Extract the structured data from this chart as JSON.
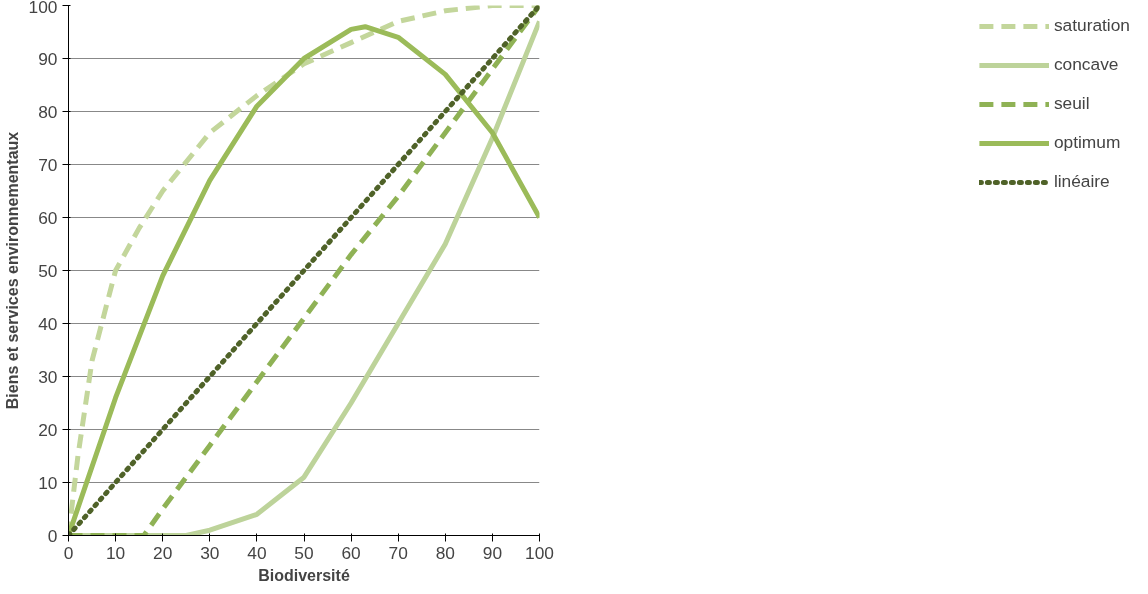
{
  "chart_data": {
    "type": "line",
    "xlabel": "Biodiversité",
    "ylabel": "Biens et services environnementaux",
    "xlim": [
      0,
      100
    ],
    "ylim": [
      0,
      100
    ],
    "xticks": [
      0,
      10,
      20,
      30,
      40,
      50,
      60,
      70,
      80,
      90,
      100
    ],
    "yticks": [
      0,
      10,
      20,
      30,
      40,
      50,
      60,
      70,
      80,
      90,
      100
    ],
    "grid": "y",
    "legend": "right",
    "marker": "none",
    "series": [
      {
        "name": "saturation",
        "color": "#c3d69b",
        "line_style": "dashed",
        "x": [
          0,
          2,
          5,
          10,
          15,
          20,
          30,
          40,
          50,
          60,
          70,
          80,
          90,
          100
        ],
        "values": [
          0,
          15,
          33,
          50,
          58,
          65,
          76,
          83,
          89,
          93,
          97,
          99,
          100,
          100
        ]
      },
      {
        "name": "concave",
        "color": "#bdd39a",
        "line_style": "solid",
        "x": [
          0,
          20,
          25,
          30,
          40,
          50,
          60,
          70,
          80,
          90,
          100
        ],
        "values": [
          0,
          0,
          0,
          1,
          4,
          11,
          25,
          40,
          55,
          75,
          97
        ]
      },
      {
        "name": "seuil",
        "color": "#8fb255",
        "line_style": "dashed",
        "x": [
          0,
          16,
          20,
          30,
          40,
          50,
          60,
          70,
          80,
          90,
          100
        ],
        "values": [
          0,
          0,
          5,
          17,
          29,
          41,
          53,
          64,
          76,
          88,
          100
        ]
      },
      {
        "name": "optimum",
        "color": "#9bbb59",
        "line_style": "solid",
        "x": [
          0,
          10,
          20,
          30,
          40,
          50,
          60,
          63,
          70,
          80,
          90,
          100
        ],
        "values": [
          0,
          26,
          49,
          67,
          81,
          90,
          95.5,
          96,
          94,
          87,
          76,
          60
        ]
      },
      {
        "name": "linéaire",
        "color": "#4f6228",
        "line_style": "dotted",
        "x": [
          0,
          100
        ],
        "values": [
          0,
          100
        ]
      }
    ]
  }
}
